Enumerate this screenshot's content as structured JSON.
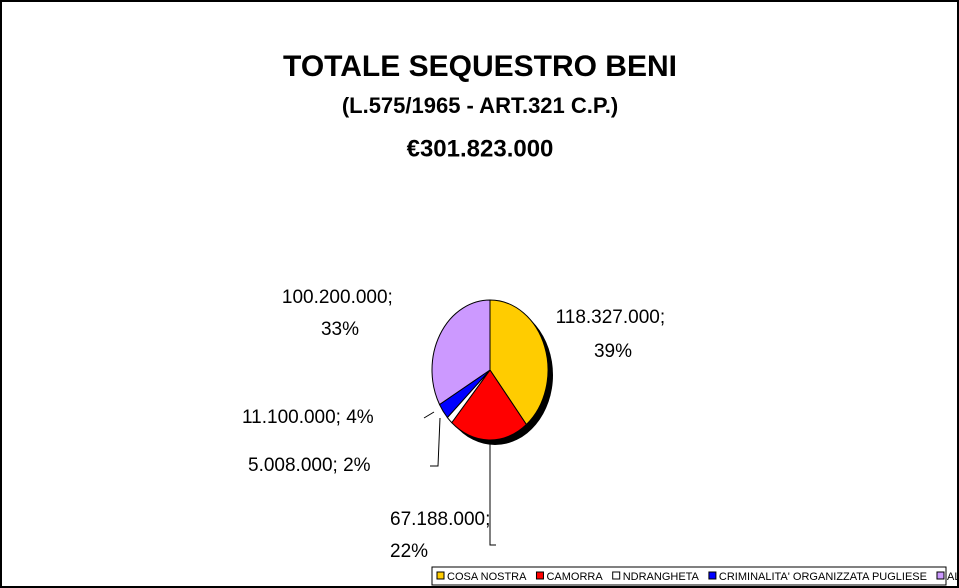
{
  "chart_data": {
    "type": "pie",
    "title": "TOTALE SEQUESTRO BENI",
    "subtitle": "(L.575/1965 - ART.321 C.P.)",
    "total": "€301.823.000",
    "categories": [
      "COSA NOSTRA",
      "CAMORRA",
      "NDRANGHETA",
      "CRIMINALITA' ORGANIZZATA PUGLIESE",
      "ALTRE ORGANIZZAZIONI CRIMINALI"
    ],
    "values": [
      118327000,
      67188000,
      5008000,
      11100000,
      100200000
    ],
    "value_labels": [
      "118.327.000; 39%",
      "67.188.000; 22%",
      "5.008.000; 2%",
      "11.100.000; 4%",
      "100.200.000; 33%"
    ],
    "colors": [
      "#FFCC00",
      "#FF0000",
      "#FFFFFF",
      "#0000FF",
      "#CC99FF"
    ],
    "legend": "bottom"
  }
}
